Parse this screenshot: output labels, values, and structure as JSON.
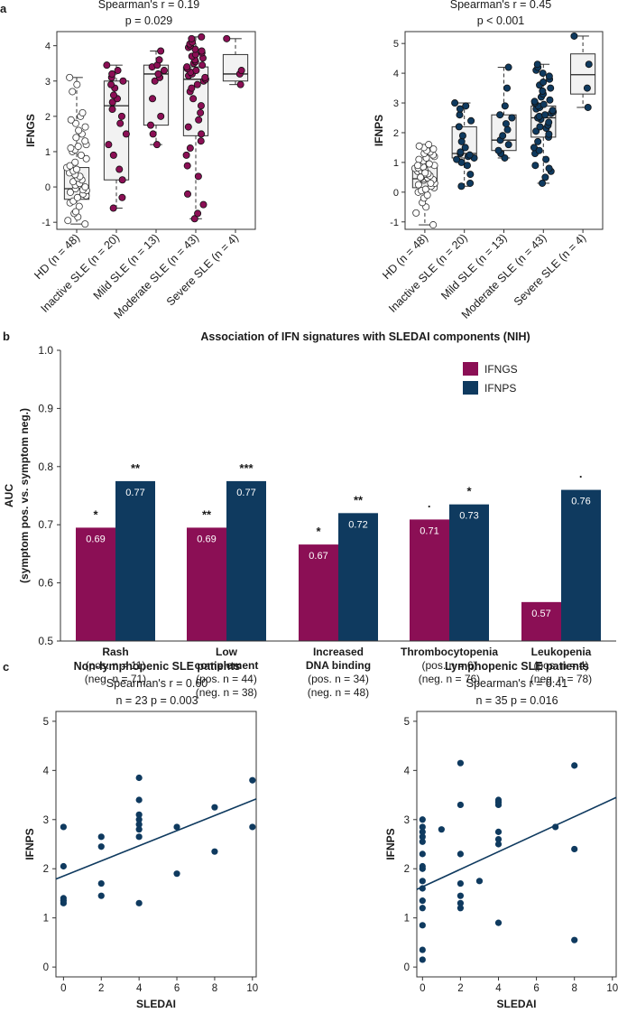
{
  "panels": {
    "a": "a",
    "b": "b",
    "c": "c"
  },
  "colors": {
    "ifngs": "#8b0f55",
    "ifnps": "#0f3a5f",
    "box_fill": "#f2f2f2",
    "hd_point_fill": "#ffffff"
  },
  "chart_data": [
    {
      "id": "a-left",
      "type": "box",
      "title_line1": "Spearman's r = 0.19",
      "title_line2": "p = 0.029",
      "ylabel": "IFNGS",
      "ylim": [
        -1.2,
        4.4
      ],
      "yticks": [
        -1,
        0,
        1,
        2,
        3,
        4
      ],
      "categories": [
        "HD (n = 48)",
        "Inactive SLE (n = 20)",
        "Mild SLE (n = 13)",
        "Moderate SLE (n = 43)",
        "Severe SLE (n = 4)"
      ],
      "boxes": [
        {
          "min": -1.05,
          "q1": -0.35,
          "median": -0.05,
          "q3": 0.55,
          "max": 3.1
        },
        {
          "min": -0.6,
          "q1": 0.2,
          "median": 2.3,
          "q3": 3.0,
          "max": 3.45
        },
        {
          "min": 1.2,
          "q1": 1.75,
          "median": 3.2,
          "q3": 3.45,
          "max": 3.85
        },
        {
          "min": -0.9,
          "q1": 1.45,
          "median": 3.05,
          "q3": 3.4,
          "max": 4.25
        },
        {
          "min": 2.9,
          "q1": 3.0,
          "median": 3.2,
          "q3": 3.75,
          "max": 4.2
        }
      ],
      "points": [
        [
          -1.05,
          -0.95,
          -0.85,
          -0.75,
          -0.7,
          -0.55,
          -0.45,
          -0.4,
          -0.3,
          -0.25,
          -0.2,
          -0.15,
          -0.1,
          -0.08,
          -0.05,
          0.0,
          0.05,
          0.1,
          0.15,
          0.2,
          0.25,
          0.3,
          0.35,
          0.4,
          0.45,
          0.5,
          0.55,
          0.6,
          0.7,
          0.8,
          0.9,
          1.0,
          1.05,
          1.1,
          1.15,
          1.2,
          1.3,
          1.4,
          1.5,
          1.6,
          1.7,
          1.8,
          1.9,
          2.0,
          2.1,
          2.7,
          2.9,
          3.1
        ],
        [
          -0.6,
          -0.3,
          0.2,
          0.5,
          0.9,
          1.2,
          1.5,
          1.8,
          2.0,
          2.2,
          2.4,
          2.5,
          2.6,
          2.8,
          2.9,
          3.0,
          3.1,
          3.2,
          3.3,
          3.45
        ],
        [
          1.2,
          1.5,
          1.75,
          2.0,
          2.5,
          3.0,
          3.1,
          3.2,
          3.3,
          3.4,
          3.45,
          3.6,
          3.85
        ],
        [
          -0.9,
          -0.75,
          -0.5,
          -0.2,
          0.3,
          0.6,
          0.9,
          1.1,
          1.3,
          1.5,
          1.7,
          1.9,
          2.1,
          2.3,
          2.5,
          2.7,
          2.8,
          2.9,
          3.0,
          3.05,
          3.1,
          3.15,
          3.2,
          3.25,
          3.3,
          3.35,
          3.4,
          3.45,
          3.5,
          3.55,
          3.6,
          3.65,
          3.7,
          3.75,
          3.8,
          3.85,
          3.9,
          3.95,
          4.0,
          4.05,
          4.1,
          4.2,
          4.25
        ],
        [
          2.9,
          3.2,
          3.3,
          4.2
        ]
      ]
    },
    {
      "id": "a-right",
      "type": "box",
      "title_line1": "Spearman's r = 0.45",
      "title_line2": "p < 0.001",
      "ylabel": "IFNPS",
      "ylim": [
        -1.25,
        5.4
      ],
      "yticks": [
        -1,
        0,
        1,
        2,
        3,
        4,
        5
      ],
      "categories": [
        "HD (n = 48)",
        "Inactive SLE (n = 20)",
        "Mild SLE (n = 13)",
        "Moderate SLE (n = 43)",
        "Severe SLE (n = 4)"
      ],
      "boxes": [
        {
          "min": -1.1,
          "q1": 0.15,
          "median": 0.45,
          "q3": 0.85,
          "max": 1.6
        },
        {
          "min": 0.2,
          "q1": 1.15,
          "median": 1.3,
          "q3": 2.2,
          "max": 3.0
        },
        {
          "min": 1.15,
          "q1": 1.4,
          "median": 1.75,
          "q3": 2.6,
          "max": 4.2
        },
        {
          "min": 0.3,
          "q1": 1.85,
          "median": 2.5,
          "q3": 2.9,
          "max": 4.3
        },
        {
          "min": 2.85,
          "q1": 3.3,
          "median": 3.95,
          "q3": 4.65,
          "max": 5.25
        }
      ],
      "points": [
        [
          -1.1,
          -0.7,
          -0.5,
          -0.35,
          -0.2,
          -0.1,
          0.0,
          0.05,
          0.1,
          0.15,
          0.2,
          0.25,
          0.3,
          0.35,
          0.4,
          0.42,
          0.45,
          0.48,
          0.5,
          0.55,
          0.6,
          0.62,
          0.65,
          0.7,
          0.72,
          0.75,
          0.8,
          0.82,
          0.85,
          0.9,
          0.95,
          1.0,
          1.05,
          1.1,
          1.15,
          1.2,
          1.25,
          1.3,
          1.35,
          1.4,
          1.45,
          1.5,
          1.55,
          1.6,
          0.3,
          0.5,
          0.65,
          0.9
        ],
        [
          0.2,
          0.3,
          0.6,
          0.9,
          1.0,
          1.1,
          1.15,
          1.2,
          1.25,
          1.3,
          1.35,
          1.5,
          1.7,
          1.9,
          2.2,
          2.4,
          2.6,
          2.8,
          2.9,
          3.0
        ],
        [
          1.15,
          1.3,
          1.4,
          1.6,
          1.75,
          1.9,
          2.1,
          2.3,
          2.5,
          2.6,
          2.9,
          3.5,
          4.2
        ],
        [
          0.3,
          0.5,
          0.7,
          0.9,
          1.1,
          1.3,
          1.5,
          1.7,
          1.85,
          1.95,
          2.05,
          2.15,
          2.25,
          2.35,
          2.45,
          2.5,
          2.55,
          2.6,
          2.65,
          2.7,
          2.75,
          2.8,
          2.85,
          2.9,
          2.95,
          3.0,
          3.05,
          3.1,
          3.2,
          3.3,
          3.4,
          3.5,
          3.6,
          3.7,
          3.8,
          3.9,
          4.0,
          4.1,
          4.2,
          4.3,
          2.2,
          1.4,
          0.8
        ],
        [
          2.85,
          3.5,
          4.3,
          5.25
        ]
      ]
    },
    {
      "id": "b",
      "type": "bar",
      "title": "Association of IFN signatures with SLEDAI components (NIH)",
      "ylabel_line1": "AUC",
      "ylabel_line2": "(symptom pos. vs. symptom neg.)",
      "ylim": [
        0.5,
        1.0
      ],
      "yticks": [
        "0.5",
        "0.6",
        "0.7",
        "0.8",
        "0.9",
        "1.0"
      ],
      "legend": [
        "IFNGS",
        "IFNPS"
      ],
      "categories": [
        {
          "name_lines": [
            "Rash"
          ],
          "pos": "(pos. n = 11)",
          "neg": "(neg. n = 71)"
        },
        {
          "name_lines": [
            "Low",
            "complement"
          ],
          "pos": "(pos. n = 44)",
          "neg": "(neg. n = 38)"
        },
        {
          "name_lines": [
            "Increased",
            "DNA binding"
          ],
          "pos": "(pos. n = 34)",
          "neg": "(neg. n = 48)"
        },
        {
          "name_lines": [
            "Thrombocytopenia"
          ],
          "pos": "(pos. n = 6)",
          "neg": "(neg. n = 76)"
        },
        {
          "name_lines": [
            "Leukopenia"
          ],
          "pos": "(pos. n = 4)",
          "neg": "(neg. n = 78)"
        }
      ],
      "series": [
        {
          "name": "IFNGS",
          "values": [
            0.695,
            0.695,
            0.666,
            0.709,
            0.567
          ],
          "labels": [
            "0.69",
            "0.69",
            "0.67",
            "0.71",
            "0.57"
          ],
          "sig": [
            "*",
            "**",
            "*",
            "·",
            ""
          ]
        },
        {
          "name": "IFNPS",
          "values": [
            0.775,
            0.775,
            0.72,
            0.735,
            0.76
          ],
          "labels": [
            "0.77",
            "0.77",
            "0.72",
            "0.73",
            "0.76"
          ],
          "sig": [
            "**",
            "***",
            "**",
            "*",
            "·"
          ]
        }
      ]
    },
    {
      "id": "c-left",
      "type": "scatter",
      "title": "Non-lymphopenic SLE patients",
      "subtitle_line1": "Spearman's r = 0.60",
      "subtitle_line2": "n = 23 p = 0.003",
      "xlabel": "SLEDAI",
      "ylabel": "IFNPS",
      "xlim": [
        -0.4,
        10.2
      ],
      "ylim": [
        -0.2,
        5.2
      ],
      "xticks": [
        0,
        2,
        4,
        6,
        8,
        10
      ],
      "yticks": [
        0,
        1,
        2,
        3,
        4,
        5
      ],
      "x": [
        0,
        0,
        0,
        0,
        2,
        2,
        2,
        2,
        4,
        4,
        4,
        4,
        4,
        4,
        4,
        4,
        6,
        6,
        8,
        8,
        10,
        10,
        0
      ],
      "y": [
        1.3,
        1.4,
        2.05,
        2.85,
        1.45,
        1.7,
        2.45,
        2.65,
        1.3,
        2.65,
        2.8,
        2.9,
        3.0,
        3.1,
        3.4,
        3.85,
        1.9,
        2.85,
        2.35,
        3.25,
        2.85,
        3.8,
        1.35
      ],
      "fit": {
        "x0": -0.4,
        "y0": 1.79,
        "x1": 10.2,
        "y1": 3.42
      }
    },
    {
      "id": "c-right",
      "type": "scatter",
      "title": "Lymphopenic SLE patients",
      "subtitle_line1": "Spearman's r = 0.41",
      "subtitle_line2": "n = 35 p = 0.016",
      "xlabel": "SLEDAI",
      "ylabel": "IFNPS",
      "xlim": [
        -0.3,
        10.2
      ],
      "ylim": [
        -0.2,
        5.2
      ],
      "xticks": [
        0,
        2,
        4,
        6,
        8,
        10
      ],
      "yticks": [
        0,
        1,
        2,
        3,
        4,
        5
      ],
      "x": [
        0,
        0,
        0,
        0,
        0,
        0,
        0,
        0,
        0,
        0,
        0,
        0,
        0,
        0,
        0,
        1,
        2,
        2,
        2,
        2,
        2,
        2,
        2,
        3,
        4,
        4,
        4,
        4,
        4,
        4,
        4,
        7,
        8,
        8,
        8
      ],
      "y": [
        0.15,
        0.35,
        0.85,
        1.2,
        1.35,
        1.6,
        1.75,
        2.0,
        2.05,
        2.3,
        2.55,
        2.65,
        2.75,
        2.85,
        3.0,
        2.8,
        1.2,
        1.3,
        1.45,
        1.7,
        2.3,
        3.3,
        4.15,
        1.75,
        0.9,
        2.5,
        2.6,
        2.75,
        3.3,
        3.35,
        3.4,
        2.85,
        0.55,
        2.4,
        4.1
      ],
      "fit": {
        "x0": -0.3,
        "y0": 1.58,
        "x1": 10.2,
        "y1": 3.45
      }
    }
  ]
}
